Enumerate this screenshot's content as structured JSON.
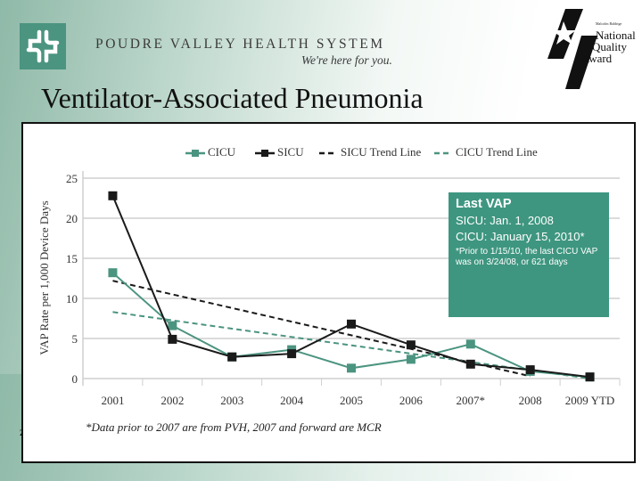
{
  "header": {
    "organization": "POUDRE VALLEY HEALTH SYSTEM",
    "tagline": "We're here for you.",
    "award": {
      "small": "Malcolm Baldrige",
      "lines": [
        "National",
        "Quality",
        "Award"
      ]
    }
  },
  "slide": {
    "title": "Ventilator-Associated Pneumonia"
  },
  "legend": [
    {
      "label": "CICU",
      "color": "#4b9480",
      "style": "line-marker"
    },
    {
      "label": "SICU",
      "color": "#1a1a1a",
      "style": "line-marker"
    },
    {
      "label": "SICU Trend Line",
      "color": "#1a1a1a",
      "style": "dashed"
    },
    {
      "label": "CICU Trend Line",
      "color": "#4b9480",
      "style": "dashed"
    }
  ],
  "callout": {
    "heading": "Last VAP",
    "line1": "SICU: Jan. 1, 2008",
    "line2": "CICU: January 15, 2010*",
    "note": "*Prior to 1/15/10, the last CICU VAP was on 3/24/08, or 621 days",
    "color": "#3e9680"
  },
  "footnote": "*Data prior to 2007 are from PVH, 2007 and forward are MCR",
  "chart_data": {
    "type": "line",
    "title": "Ventilator-Associated Pneumonia",
    "xlabel": "",
    "ylabel": "VAP Rate per 1,000 Device Days",
    "categories": [
      "2001",
      "2002",
      "2003",
      "2004",
      "2005",
      "2006",
      "2007*",
      "2008",
      "2009 YTD"
    ],
    "yticks": [
      0,
      5,
      10,
      15,
      20,
      25
    ],
    "ylim": [
      0,
      25
    ],
    "grid": true,
    "legend_position": "top",
    "series": [
      {
        "name": "CICU",
        "color": "#4b9480",
        "marker": "square",
        "values": [
          13.2,
          6.6,
          2.7,
          3.6,
          1.3,
          2.4,
          4.3,
          0.9,
          0.2
        ]
      },
      {
        "name": "SICU",
        "color": "#1a1a1a",
        "marker": "square",
        "values": [
          22.8,
          4.9,
          2.7,
          3.1,
          6.8,
          4.2,
          1.8,
          1.1,
          0.2
        ]
      },
      {
        "name": "SICU Trend Line",
        "color": "#1a1a1a",
        "style": "dashed",
        "start": {
          "x": "2001",
          "y": 12.2
        },
        "end": {
          "x": "2008",
          "y": 0.3
        }
      },
      {
        "name": "CICU Trend Line",
        "color": "#4b9480",
        "style": "dashed",
        "start": {
          "x": "2001",
          "y": 8.3
        },
        "end": {
          "x": "2009 YTD",
          "y": 0.0
        }
      }
    ],
    "annotations": [
      "Last VAP — SICU: Jan. 1, 2008; CICU: January 15, 2010*",
      "*Data prior to 2007 are from PVH, 2007 and forward are MCR"
    ]
  }
}
